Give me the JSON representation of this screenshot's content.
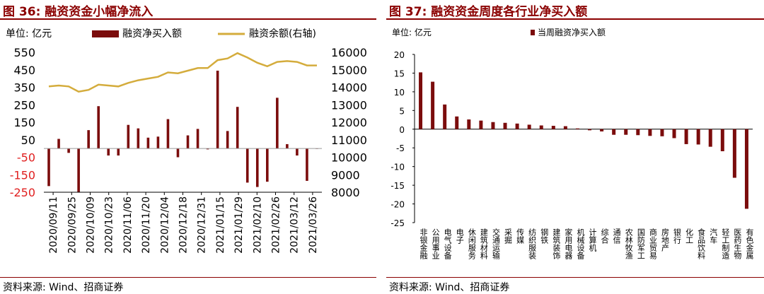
{
  "left": {
    "title": "图 36:  融资资金小幅净流入",
    "source": "资料来源:  Wind、招商证券",
    "chart_data": {
      "type": "bar+line",
      "unit_label": "单位:  亿元",
      "legend": [
        "融资净买入额",
        "融资余额(右轴)"
      ],
      "colors": {
        "bar": "#7b0c0c",
        "line": "#d4ac3c"
      },
      "y_left": {
        "min": -250,
        "max": 550,
        "ticks": [
          550,
          450,
          350,
          250,
          150,
          50,
          -50,
          -150,
          -250
        ]
      },
      "y_right": {
        "min": 8000,
        "max": 16000,
        "ticks": [
          16000,
          15000,
          14000,
          13000,
          12000,
          11000,
          10000,
          9000,
          8000
        ]
      },
      "x_tick_labels": [
        "2020/09/11",
        "2020/09/25",
        "2020/10/09",
        "2020/10/23",
        "2020/11/06",
        "2020/11/20",
        "2020/12/04",
        "2020/12/18",
        "2020/12/31",
        "2021/01/15",
        "2021/01/29",
        "2021/02/10",
        "2021/02/26",
        "2021/03/12",
        "2021/03/26"
      ],
      "series": [
        {
          "name": "融资净买入额",
          "axis": "left",
          "values": [
            -215,
            55,
            -25,
            -250,
            105,
            242,
            -40,
            -40,
            135,
            115,
            62,
            68,
            168,
            -50,
            75,
            112,
            -5,
            445,
            100,
            238,
            -195,
            -220,
            -190,
            290,
            25,
            -40,
            -185,
            0
          ]
        },
        {
          "name": "融资余额(右轴)",
          "axis": "right",
          "values": [
            14050,
            14100,
            14050,
            13750,
            13850,
            14150,
            14100,
            14050,
            14250,
            14400,
            14500,
            14600,
            14850,
            14800,
            14950,
            15100,
            15100,
            15550,
            15650,
            15950,
            15700,
            15400,
            15200,
            15450,
            15500,
            15450,
            15250,
            15250
          ]
        }
      ]
    }
  },
  "right": {
    "title": "图 37:  融资资金周度各行业净买入额",
    "source": "资料来源:  Wind、招商证券",
    "chart_data": {
      "type": "bar",
      "unit_label": "单位:  亿元",
      "legend": [
        "当周融资净买入额"
      ],
      "colors": {
        "bar": "#7b0c0c"
      },
      "ylim": [
        -25,
        20
      ],
      "y_ticks": [
        20,
        15,
        10,
        5,
        0,
        -5,
        -10,
        -15,
        -20,
        -25
      ],
      "categories": [
        "非银金融",
        "公用事业",
        "电气设备",
        "电子",
        "休闲服务",
        "建筑材料",
        "交通运输",
        "采掘",
        "传媒",
        "纺织服装",
        "钢铁",
        "建筑装饰",
        "家用电器",
        "机械设备",
        "计算机",
        "综合",
        "通信",
        "农林牧渔",
        "国防军工",
        "商业贸易",
        "房地产",
        "银行",
        "化工",
        "食品饮料",
        "汽车",
        "轻工制造",
        "医药生物",
        "有色金属"
      ],
      "values": [
        15.2,
        12.7,
        6.6,
        3.4,
        2.6,
        2.3,
        1.9,
        1.7,
        1.5,
        1.2,
        1.0,
        0.9,
        0.8,
        0.2,
        -0.3,
        -0.6,
        -1.5,
        -1.5,
        -1.6,
        -1.8,
        -1.9,
        -2.4,
        -4.0,
        -4.1,
        -4.7,
        -5.9,
        -13.0,
        -21.3
      ]
    }
  }
}
